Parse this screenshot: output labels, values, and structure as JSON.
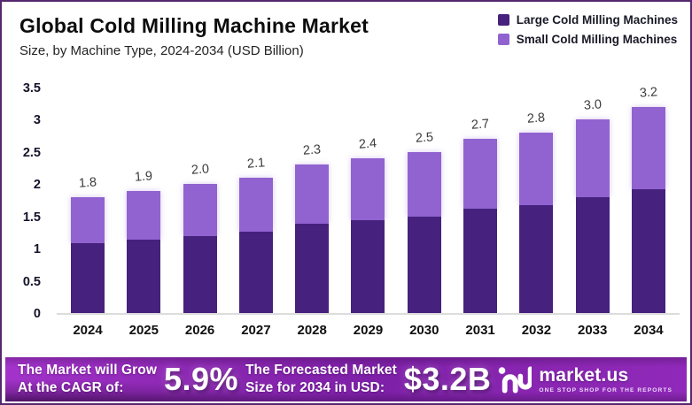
{
  "header": {
    "title": "Global Cold Milling Machine Market",
    "subtitle": "Size, by Machine Type, 2024-2034 (USD Billion)"
  },
  "legend": [
    {
      "label": "Large Cold Milling Machines",
      "color": "#46217e"
    },
    {
      "label": "Small Cold Milling Machines",
      "color": "#9163d0"
    }
  ],
  "chart_data": {
    "type": "bar",
    "stacked": true,
    "title": "Global Cold Milling Machine Market",
    "subtitle": "Size, by Machine Type, 2024-2034 (USD Billion)",
    "xlabel": "",
    "ylabel": "USD Billion",
    "ylim": [
      0,
      3.5
    ],
    "y_ticks": [
      "3.5",
      "3",
      "2.5",
      "2",
      "1.5",
      "1",
      "0.5",
      "0"
    ],
    "grid": false,
    "legend_position": "top-right",
    "categories": [
      "2024",
      "2025",
      "2026",
      "2027",
      "2028",
      "2029",
      "2030",
      "2031",
      "2032",
      "2033",
      "2034"
    ],
    "series": [
      {
        "name": "Large Cold Milling Machines",
        "color": "#46217e",
        "values": [
          1.08,
          1.14,
          1.2,
          1.26,
          1.38,
          1.44,
          1.5,
          1.62,
          1.68,
          1.8,
          1.92
        ]
      },
      {
        "name": "Small Cold Milling Machines",
        "color": "#9163d0",
        "values": [
          0.72,
          0.76,
          0.8,
          0.84,
          0.92,
          0.96,
          1.0,
          1.08,
          1.12,
          1.2,
          1.28
        ]
      }
    ],
    "totals": [
      1.8,
      1.9,
      2.0,
      2.1,
      2.3,
      2.4,
      2.5,
      2.7,
      2.8,
      3.0,
      3.2
    ],
    "total_labels": [
      "1.8",
      "1.9",
      "2.0",
      "2.1",
      "2.3",
      "2.4",
      "2.5",
      "2.7",
      "2.8",
      "3.0",
      "3.2"
    ]
  },
  "banner": {
    "cagr_label_line1": "The Market will Grow",
    "cagr_label_line2": "At the CAGR of:",
    "cagr_value": "5.9%",
    "forecast_label_line1": "The Forecasted Market",
    "forecast_label_line2": "Size for 2034 in USD:",
    "forecast_value": "$3.2B",
    "brand": {
      "name": "market.us",
      "tagline": "ONE STOP SHOP FOR THE REPORTS"
    }
  },
  "colors": {
    "large_series": "#46217e",
    "small_series": "#9163d0",
    "banner_base": "#8b27b2",
    "frame_border": "#55276f"
  }
}
